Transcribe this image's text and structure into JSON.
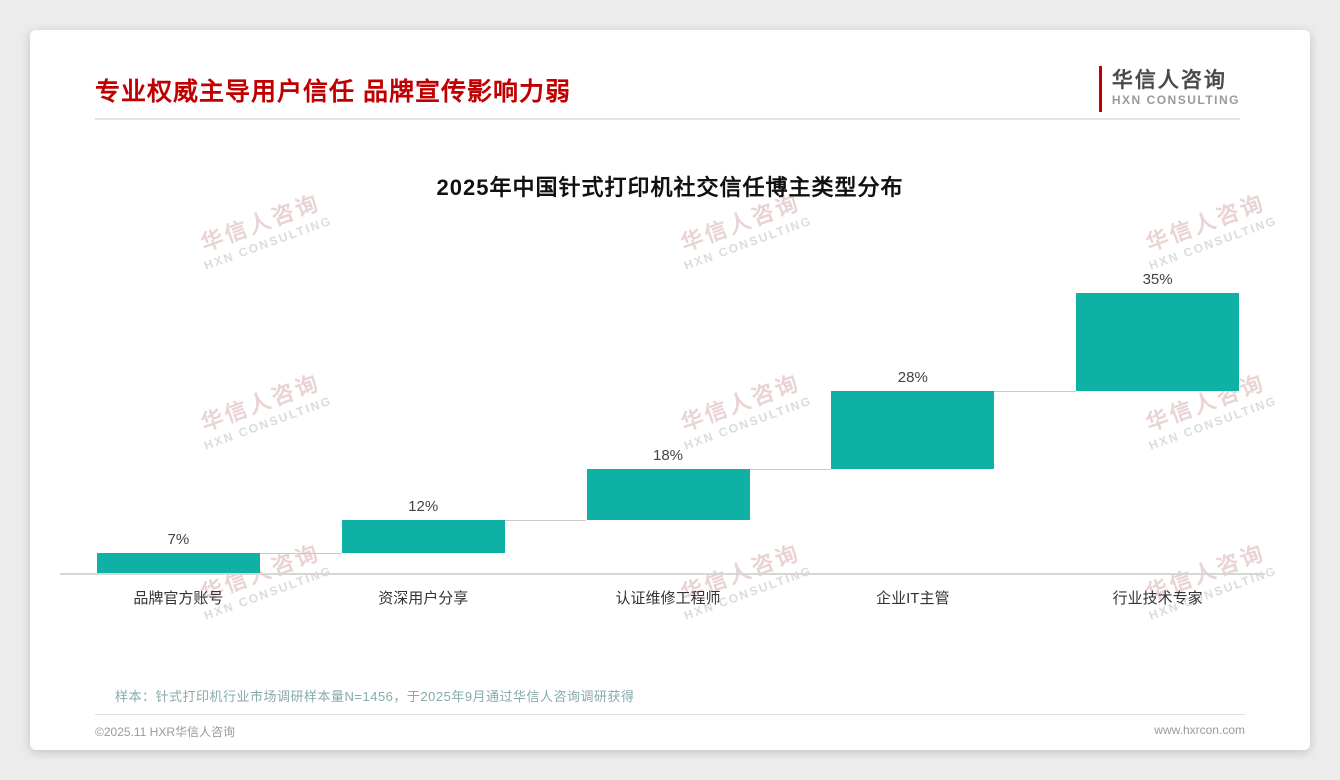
{
  "page": {
    "header": {
      "title": "专业权威主导用户信任 品牌宣传影响力弱"
    },
    "logo": {
      "name": "华信人咨询",
      "sub": "HXN CONSULTING"
    },
    "watermark": {
      "line1": "华信人咨询",
      "line2": "HXN CONSULTING"
    },
    "note": "样本：针式打印机行业市场调研样本量N=1456，于2025年9月通过华信人咨询调研获得",
    "footer": {
      "copyright": "©2025.11 HXR华信人咨询",
      "website": "www.hxrcon.com"
    }
  },
  "colors": {
    "accent_red": "#C00000",
    "bar_teal": "#0EB1A4",
    "note_teal_gray": "#86aaaa"
  },
  "chart_data": {
    "type": "bar",
    "subtype": "waterfall",
    "title": "2025年中国针式打印机社交信任博主类型分布",
    "categories": [
      "品牌官方账号",
      "资深用户分享",
      "认证维修工程师",
      "企业IT主管",
      "行业技术专家"
    ],
    "values": [
      7,
      12,
      18,
      28,
      35
    ],
    "data_labels": [
      "7%",
      "12%",
      "18%",
      "28%",
      "35%"
    ],
    "bar_color": "#0EB1A4",
    "ylabel": "",
    "xlabel": "",
    "ylim": [
      0,
      100
    ],
    "grid": false,
    "legend": "none",
    "note": "bars are stacked cumulatively (waterfall): each bar starts at the running total of previous bars, total = 100%"
  }
}
